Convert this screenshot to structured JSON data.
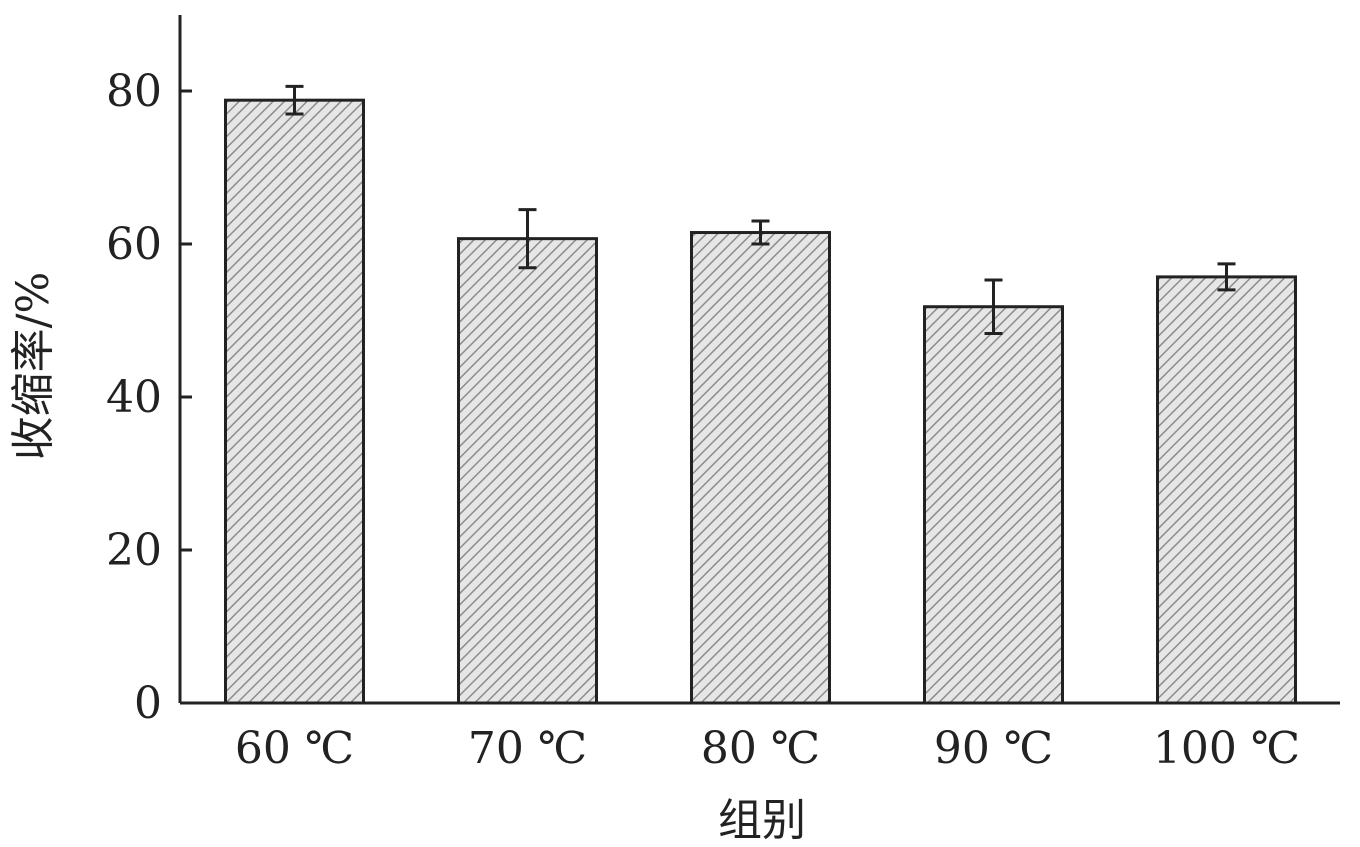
{
  "chart_data": {
    "type": "bar",
    "title": "",
    "xlabel": "组别",
    "ylabel": "收缩率/%",
    "categories": [
      "60 ℃",
      "70 ℃",
      "80 ℃",
      "90 ℃",
      "100 ℃"
    ],
    "values": [
      78.8,
      60.7,
      61.5,
      51.8,
      55.7
    ],
    "error": [
      1.8,
      3.8,
      1.5,
      3.5,
      1.7
    ],
    "yticks": [
      0,
      20,
      40,
      60,
      80
    ],
    "ylim": [
      0,
      90
    ],
    "grid": false,
    "bar_fill": "hatched",
    "colors": {
      "bar_fill": "#e6e6e6",
      "hatch": "#8c8c8c",
      "stroke": "#222222"
    }
  }
}
